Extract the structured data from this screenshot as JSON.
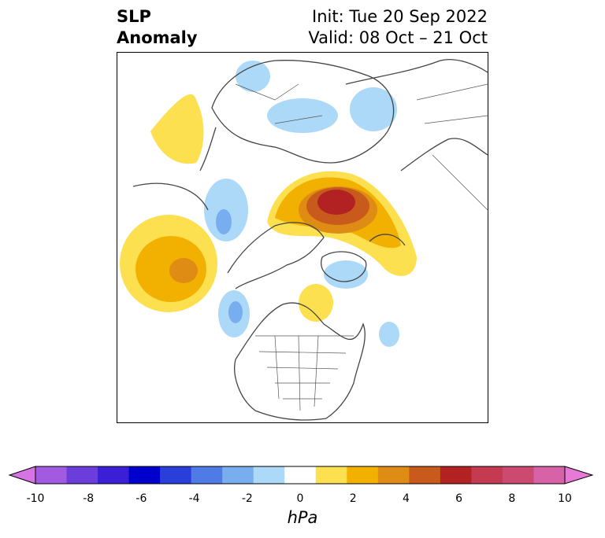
{
  "title": {
    "left_line1": "SLP",
    "left_line2": "Anomaly",
    "right_line1": "Init: Tue 20 Sep 2022",
    "right_line2": "Valid: 08 Oct – 21 Oct"
  },
  "colorbar": {
    "unit": "hPa",
    "tick_labels": [
      "-10",
      "-8",
      "-6",
      "-4",
      "-2",
      "0",
      "2",
      "4",
      "6",
      "8",
      "10"
    ],
    "colors": [
      "#d873e6",
      "#a15ae0",
      "#6c3ddb",
      "#3a1fd6",
      "#0000cc",
      "#2a3fd9",
      "#4f7be6",
      "#78aef0",
      "#acd9f7",
      "#ffffff",
      "#fde050",
      "#f2b100",
      "#df8c14",
      "#c85a1c",
      "#b22222",
      "#c43a50",
      "#cc4a70",
      "#d862a8",
      "#e67ad6"
    ]
  },
  "map": {
    "projection": "north-polar stereographic",
    "colors": {
      "land_outline": "#444444",
      "border": "#555555"
    }
  }
}
